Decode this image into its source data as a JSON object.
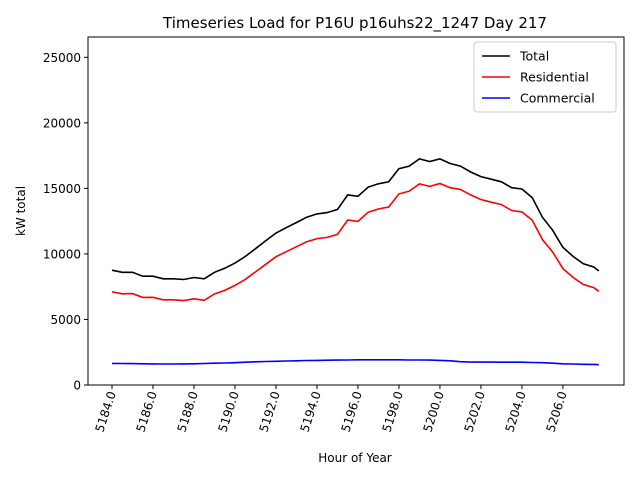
{
  "chart_data": {
    "type": "line",
    "title": "Timeseries Load for P16U p16uhs22_1247  Day 217",
    "xlabel": "Hour of Year",
    "ylabel": "kW total",
    "xlim": [
      5182.83,
      5208.98
    ],
    "ylim": [
      0,
      26550
    ],
    "xticks": [
      5184,
      5186,
      5188,
      5190,
      5192,
      5194,
      5196,
      5198,
      5200,
      5202,
      5204,
      5206
    ],
    "xtick_labels": [
      "5184.0",
      "5186.0",
      "5188.0",
      "5190.0",
      "5192.0",
      "5194.0",
      "5196.0",
      "5198.0",
      "5200.0",
      "5202.0",
      "5204.0",
      "5206.0"
    ],
    "yticks": [
      0,
      5000,
      10000,
      15000,
      20000,
      25000
    ],
    "ytick_labels": [
      "0",
      "5000",
      "10000",
      "15000",
      "20000",
      "25000"
    ],
    "grid": false,
    "legend_position": "top-right",
    "x": [
      5184,
      5184.5,
      5185,
      5185.5,
      5186,
      5186.5,
      5187,
      5187.5,
      5188,
      5188.5,
      5189,
      5189.5,
      5190,
      5190.5,
      5191,
      5191.5,
      5192,
      5192.5,
      5193,
      5193.5,
      5194,
      5194.5,
      5195,
      5195.5,
      5196,
      5196.5,
      5197,
      5197.5,
      5198,
      5198.5,
      5199,
      5199.5,
      5200,
      5200.5,
      5201,
      5201.5,
      5202,
      5202.5,
      5203,
      5203.5,
      5204,
      5204.5,
      5205,
      5205.5,
      5206,
      5206.5,
      5207,
      5207.5,
      5207.75
    ],
    "series": [
      {
        "name": "Total",
        "color": "#000000",
        "values": [
          8760,
          8600,
          8600,
          8300,
          8300,
          8100,
          8100,
          8050,
          8200,
          8100,
          8600,
          8900,
          9300,
          9800,
          10400,
          11000,
          11600,
          12000,
          12400,
          12800,
          13050,
          13150,
          13400,
          14500,
          14400,
          15100,
          15350,
          15500,
          16500,
          16700,
          17250,
          17050,
          17250,
          16900,
          16700,
          16250,
          15900,
          15700,
          15500,
          15050,
          14950,
          14300,
          12800,
          11800,
          10500,
          9800,
          9250,
          9000,
          8700
        ]
      },
      {
        "name": "Residential",
        "color": "#ff0000",
        "values": [
          7110,
          6960,
          6970,
          6680,
          6690,
          6500,
          6500,
          6440,
          6580,
          6460,
          6940,
          7220,
          7600,
          8060,
          8630,
          9210,
          9790,
          10170,
          10550,
          10930,
          11170,
          11260,
          11500,
          12590,
          12480,
          13180,
          13430,
          13580,
          14580,
          14790,
          15340,
          15150,
          15370,
          15050,
          14920,
          14500,
          14150,
          13950,
          13760,
          13310,
          13210,
          12580,
          11100,
          10140,
          8880,
          8200,
          7670,
          7430,
          7150
        ]
      },
      {
        "name": "Commercial",
        "color": "#0000ff",
        "values": [
          1650,
          1640,
          1630,
          1620,
          1610,
          1600,
          1600,
          1610,
          1620,
          1640,
          1660,
          1680,
          1700,
          1740,
          1770,
          1790,
          1810,
          1830,
          1850,
          1870,
          1880,
          1890,
          1900,
          1910,
          1920,
          1920,
          1920,
          1920,
          1920,
          1910,
          1910,
          1900,
          1880,
          1850,
          1780,
          1750,
          1750,
          1750,
          1740,
          1740,
          1740,
          1720,
          1700,
          1660,
          1620,
          1600,
          1580,
          1570,
          1550
        ]
      }
    ]
  }
}
